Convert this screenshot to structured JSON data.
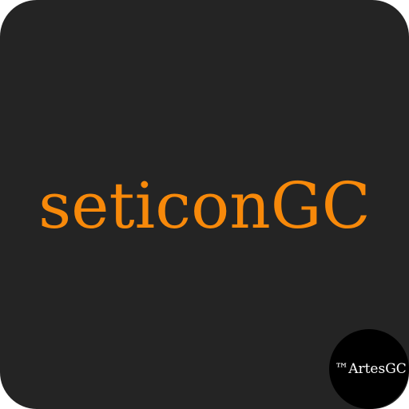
{
  "app_icon": {
    "title": "seticonGC",
    "badge_text": "™ArtesGC"
  },
  "colors": {
    "tile_background": "#242424",
    "title_text": "#f7890a",
    "badge_background": "#000000",
    "badge_text": "#ffffff"
  }
}
